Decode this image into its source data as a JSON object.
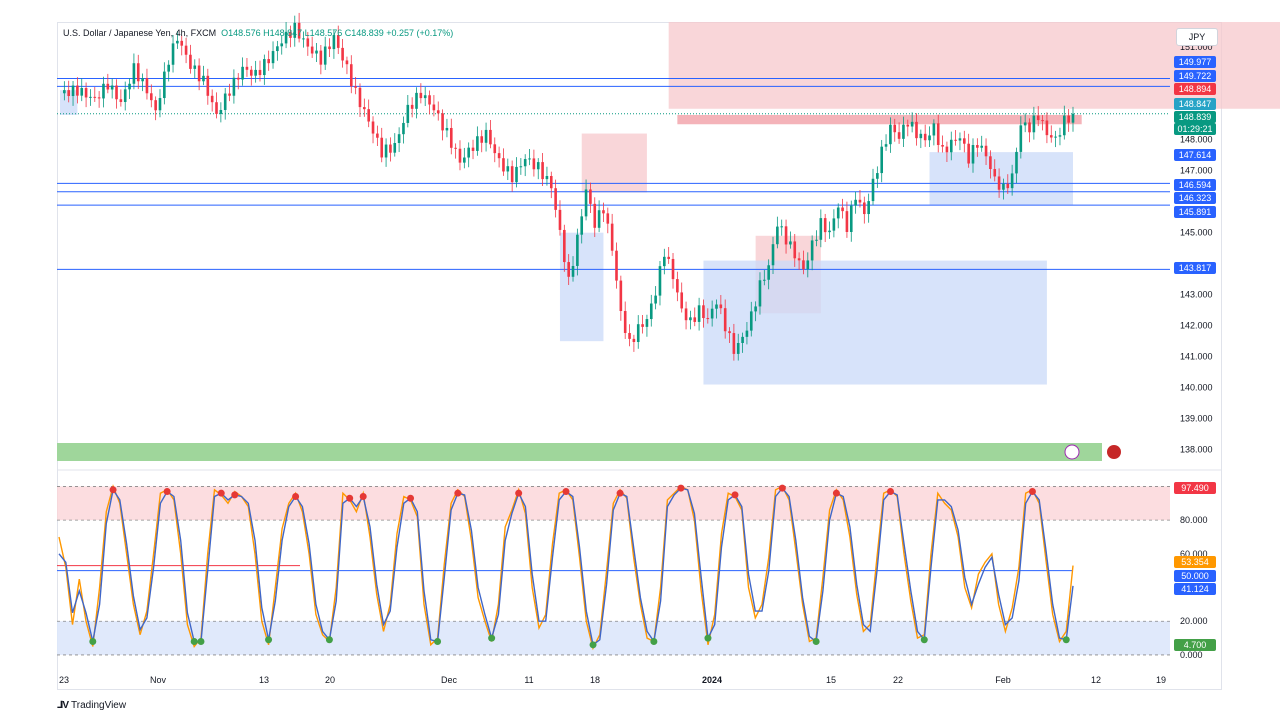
{
  "header": {
    "symbol": "U.S. Dollar / Japanese Yen, 4h, FXCM",
    "ohlc": "O148.576 H148.847 L148.576 C148.839 +0.257 (+0.17%)",
    "currency_button": "JPY"
  },
  "footer": {
    "brand": "TradingView"
  },
  "colors": {
    "up": "#089981",
    "down": "#f23645",
    "blue_line": "#2962ff",
    "axis_blue": "#2962ff",
    "resistance_fill": "#f7c8cc",
    "support_fill": "#c9daf8",
    "banner_green": "#9fd69b"
  },
  "chart_data": [
    {
      "type": "candlestick",
      "title": "",
      "x_ticks": [
        "23",
        "Nov",
        "13",
        "20",
        "Dec",
        "11",
        "18",
        "2024",
        "15",
        "22",
        "Feb",
        "12",
        "19"
      ],
      "y_ticks": [
        "151.000",
        "148.000",
        "147.000",
        "145.000",
        "143.000",
        "142.000",
        "141.000",
        "140.000",
        "139.000",
        "138.000"
      ],
      "ylim": [
        137.6,
        151.8
      ],
      "price_tags": [
        {
          "value": "149.977",
          "color": "#2962ff"
        },
        {
          "value": "149.722",
          "color": "#2962ff"
        },
        {
          "value": "148.894",
          "color": "#f23645"
        },
        {
          "value": "148.847",
          "color": "#26a3c6"
        },
        {
          "value": "148.839",
          "color": "#089981"
        },
        {
          "value": "01:29:21",
          "color": "#089981"
        },
        {
          "value": "147.614",
          "color": "#2962ff"
        },
        {
          "value": "146.594",
          "color": "#2962ff"
        },
        {
          "value": "146.323",
          "color": "#2962ff"
        },
        {
          "value": "145.891",
          "color": "#2962ff"
        },
        {
          "value": "143.817",
          "color": "#2962ff"
        }
      ],
      "horizontal_levels": [
        149.977,
        149.722,
        146.594,
        146.323,
        145.891,
        143.817
      ],
      "close_path": [
        [
          0,
          149.5
        ],
        [
          4,
          149.6
        ],
        [
          8,
          149.3
        ],
        [
          11,
          149.8
        ],
        [
          14,
          149.2
        ],
        [
          17,
          150.3
        ],
        [
          20,
          149.6
        ],
        [
          22,
          148.9
        ],
        [
          25,
          150.6
        ],
        [
          27,
          151.3
        ],
        [
          30,
          150.4
        ],
        [
          33,
          149.9
        ],
        [
          36,
          148.8
        ],
        [
          39,
          149.6
        ],
        [
          42,
          150.3
        ],
        [
          45,
          150.1
        ],
        [
          48,
          150.6
        ],
        [
          51,
          151.2
        ],
        [
          54,
          151.6
        ],
        [
          57,
          151.0
        ],
        [
          60,
          150.6
        ],
        [
          63,
          151.3
        ],
        [
          66,
          150.3
        ],
        [
          68,
          149.5
        ],
        [
          71,
          148.6
        ],
        [
          74,
          147.6
        ],
        [
          77,
          147.8
        ],
        [
          80,
          149.0
        ],
        [
          83,
          149.5
        ],
        [
          86,
          149.0
        ],
        [
          89,
          148.2
        ],
        [
          92,
          147.3
        ],
        [
          95,
          147.8
        ],
        [
          98,
          148.2
        ],
        [
          101,
          147.3
        ],
        [
          104,
          146.8
        ],
        [
          107,
          147.4
        ],
        [
          110,
          147.1
        ],
        [
          113,
          146.5
        ],
        [
          115,
          145.0
        ],
        [
          117,
          143.4
        ],
        [
          119,
          144.8
        ],
        [
          121,
          146.4
        ],
        [
          123,
          145.3
        ],
        [
          125,
          145.8
        ],
        [
          127,
          144.5
        ],
        [
          129,
          142.4
        ],
        [
          131,
          141.4
        ],
        [
          133,
          141.9
        ],
        [
          135,
          142.2
        ],
        [
          137,
          143.1
        ],
        [
          139,
          144.4
        ],
        [
          141,
          143.6
        ],
        [
          143,
          142.5
        ],
        [
          145,
          142.1
        ],
        [
          147,
          142.5
        ],
        [
          149,
          142.2
        ],
        [
          151,
          142.8
        ],
        [
          153,
          142.0
        ],
        [
          155,
          141.2
        ],
        [
          157,
          141.6
        ],
        [
          159,
          142.3
        ],
        [
          161,
          143.3
        ],
        [
          163,
          143.9
        ],
        [
          165,
          145.3
        ],
        [
          167,
          144.8
        ],
        [
          169,
          144.3
        ],
        [
          171,
          143.8
        ],
        [
          173,
          144.6
        ],
        [
          175,
          145.3
        ],
        [
          177,
          145.0
        ],
        [
          179,
          145.9
        ],
        [
          181,
          145.2
        ],
        [
          183,
          146.2
        ],
        [
          185,
          145.6
        ],
        [
          187,
          146.6
        ],
        [
          189,
          147.6
        ],
        [
          191,
          148.4
        ],
        [
          193,
          148.1
        ],
        [
          195,
          148.6
        ],
        [
          197,
          148.2
        ],
        [
          199,
          148.0
        ],
        [
          201,
          148.4
        ],
        [
          203,
          147.6
        ],
        [
          205,
          147.9
        ],
        [
          207,
          148.1
        ],
        [
          209,
          147.4
        ],
        [
          211,
          147.9
        ],
        [
          213,
          147.5
        ],
        [
          215,
          146.7
        ],
        [
          217,
          146.4
        ],
        [
          219,
          146.8
        ],
        [
          221,
          148.5
        ],
        [
          223,
          148.4
        ],
        [
          225,
          148.8
        ],
        [
          227,
          148.2
        ],
        [
          229,
          148.0
        ],
        [
          231,
          148.6
        ],
        [
          233,
          148.84
        ]
      ]
    },
    {
      "type": "line",
      "title": "",
      "y_ticks": [
        "80.000",
        "60.000",
        "20.000",
        "0.000"
      ],
      "ylim": [
        -3,
        105
      ],
      "levels": [
        80,
        50,
        20
      ],
      "value_tags": [
        {
          "value": "97.490",
          "color": "#f23645"
        },
        {
          "value": "53.354",
          "color": "#ff9800"
        },
        {
          "value": "50.000",
          "color": "#2962ff"
        },
        {
          "value": "41.124",
          "color": "#2962ff"
        },
        {
          "value": "4.700",
          "color": "#43a047"
        }
      ],
      "series": [
        {
          "color": "#ff9800",
          "values": [
            70,
            52,
            18,
            45,
            20,
            5,
            40,
            85,
            100,
            90,
            60,
            30,
            12,
            26,
            60,
            96,
            98,
            92,
            60,
            18,
            5,
            10,
            60,
            98,
            95,
            90,
            97,
            94,
            88,
            60,
            20,
            6,
            40,
            75,
            90,
            96,
            85,
            60,
            24,
            12,
            8,
            40,
            96,
            92,
            85,
            96,
            70,
            36,
            14,
            30,
            72,
            94,
            92,
            82,
            30,
            6,
            10,
            54,
            90,
            98,
            94,
            68,
            34,
            20,
            8,
            30,
            76,
            86,
            98,
            84,
            40,
            16,
            24,
            66,
            96,
            98,
            92,
            58,
            20,
            4,
            12,
            50,
            90,
            98,
            93,
            58,
            30,
            10,
            8,
            40,
            92,
            96,
            100,
            98,
            80,
            38,
            6,
            24,
            72,
            96,
            94,
            86,
            40,
            22,
            30,
            58,
            98,
            100,
            92,
            62,
            30,
            8,
            10,
            46,
            86,
            98,
            92,
            70,
            36,
            14,
            18,
            58,
            96,
            98,
            94,
            60,
            32,
            10,
            12,
            60,
            96,
            90,
            86,
            70,
            40,
            28,
            48,
            55,
            60,
            30,
            14,
            28,
            52,
            96,
            98,
            90,
            56,
            24,
            8,
            14,
            53
          ]
        },
        {
          "color": "#3f66c8",
          "values": [
            60,
            55,
            25,
            38,
            25,
            8,
            30,
            78,
            98,
            92,
            66,
            35,
            15,
            22,
            52,
            90,
            97,
            94,
            68,
            25,
            8,
            8,
            50,
            94,
            96,
            92,
            95,
            94,
            90,
            68,
            28,
            9,
            32,
            68,
            88,
            94,
            88,
            66,
            30,
            14,
            9,
            32,
            90,
            93,
            88,
            94,
            76,
            42,
            18,
            26,
            64,
            90,
            93,
            85,
            38,
            9,
            8,
            46,
            86,
            96,
            95,
            74,
            40,
            24,
            10,
            24,
            68,
            84,
            96,
            88,
            48,
            20,
            20,
            58,
            92,
            97,
            94,
            64,
            26,
            6,
            9,
            42,
            86,
            96,
            94,
            64,
            34,
            14,
            8,
            32,
            88,
            95,
            99,
            98,
            84,
            46,
            10,
            18,
            64,
            92,
            95,
            88,
            48,
            26,
            26,
            50,
            94,
            99,
            94,
            68,
            34,
            11,
            8,
            38,
            80,
            96,
            94,
            76,
            42,
            18,
            14,
            50,
            92,
            97,
            95,
            66,
            38,
            14,
            9,
            52,
            92,
            92,
            88,
            74,
            46,
            30,
            42,
            52,
            58,
            36,
            18,
            22,
            44,
            90,
            97,
            92,
            62,
            30,
            10,
            9,
            41
          ]
        }
      ]
    }
  ]
}
